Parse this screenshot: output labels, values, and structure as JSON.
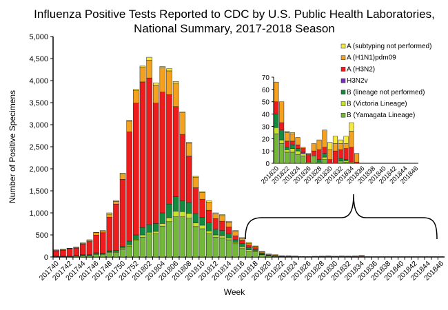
{
  "chart_data": [
    {
      "type": "bar",
      "stacked": true,
      "title": "Influenza Positive Tests Reported to CDC by U.S. Public Health Laboratories, National Summary, 2017-2018 Season",
      "title_lines": [
        "Influenza Positive Tests Reported to CDC by U.S. Public Health Laboratories,",
        "National Summary, 2017-2018 Season"
      ],
      "xlabel": "Week",
      "ylabel": "Number of Positive Specimens",
      "ylim": [
        0,
        5000
      ],
      "yticks": [
        0,
        500,
        1000,
        1500,
        2000,
        2500,
        3000,
        3500,
        4000,
        4500,
        5000
      ],
      "ytick_labels": [
        "0",
        "500",
        "1,000",
        "1,500",
        "2,000",
        "2,500",
        "3,000",
        "3,500",
        "4,000",
        "4,500",
        "5,000"
      ],
      "grid": false,
      "categories": [
        "201740",
        "201741",
        "201742",
        "201743",
        "201744",
        "201745",
        "201746",
        "201747",
        "201748",
        "201749",
        "201750",
        "201751",
        "201752",
        "201801",
        "201802",
        "201803",
        "201804",
        "201805",
        "201806",
        "201807",
        "201808",
        "201809",
        "201810",
        "201811",
        "201812",
        "201813",
        "201814",
        "201815",
        "201816",
        "201817",
        "201818",
        "201819",
        "201820",
        "201821",
        "201822",
        "201823",
        "201824",
        "201825",
        "201826",
        "201827",
        "201828",
        "201829",
        "201830",
        "201831",
        "201832",
        "201833",
        "201834",
        "201835",
        "201836",
        "201837",
        "201838",
        "201839",
        "201840",
        "201841",
        "201842",
        "201843",
        "201844",
        "201845",
        "201846"
      ],
      "series": [
        {
          "name": "B (Yamagata Lineage)",
          "color": "#74b83a",
          "values": [
            10,
            10,
            10,
            20,
            30,
            30,
            60,
            60,
            100,
            100,
            170,
            250,
            370,
            450,
            520,
            530,
            700,
            800,
            910,
            910,
            880,
            690,
            640,
            530,
            450,
            430,
            390,
            300,
            190,
            120,
            120,
            50,
            24,
            16,
            9,
            9,
            7,
            6,
            1,
            6,
            1,
            3,
            0,
            0,
            2,
            1,
            1,
            0,
            0,
            0,
            0,
            0,
            0,
            0,
            0,
            0,
            0,
            0,
            0
          ]
        },
        {
          "name": "B (Victoria Lineage)",
          "color": "#c6e22c",
          "values": [
            2,
            2,
            3,
            3,
            5,
            5,
            10,
            10,
            15,
            20,
            30,
            30,
            30,
            50,
            40,
            50,
            60,
            90,
            130,
            120,
            110,
            80,
            80,
            60,
            50,
            50,
            40,
            30,
            40,
            40,
            20,
            10,
            5,
            3,
            2,
            3,
            3,
            2,
            0,
            0,
            0,
            2,
            0,
            0,
            0,
            1,
            0,
            0,
            0,
            0,
            0,
            0,
            0,
            0,
            0,
            0,
            0,
            0,
            0
          ]
        },
        {
          "name": "B (lineage not performed)",
          "color": "#138a3e",
          "values": [
            5,
            5,
            7,
            7,
            15,
            15,
            25,
            20,
            25,
            30,
            40,
            80,
            100,
            170,
            170,
            180,
            240,
            310,
            330,
            250,
            240,
            210,
            180,
            180,
            130,
            120,
            90,
            60,
            70,
            60,
            30,
            15,
            11,
            8,
            2,
            3,
            2,
            0,
            0,
            0,
            2,
            3,
            0,
            0,
            2,
            1,
            0,
            0,
            0,
            0,
            0,
            0,
            0,
            0,
            0,
            0,
            0,
            0,
            0
          ]
        },
        {
          "name": "H3N2v",
          "color": "#7a2dc0",
          "values": [
            0,
            0,
            0,
            0,
            0,
            0,
            0,
            0,
            0,
            0,
            0,
            0,
            0,
            0,
            0,
            0,
            0,
            0,
            0,
            0,
            0,
            0,
            0,
            0,
            0,
            0,
            0,
            0,
            0,
            0,
            0,
            0,
            0,
            0,
            0,
            0,
            0,
            1,
            0,
            0,
            0,
            0,
            0,
            0,
            0,
            0,
            0,
            0,
            0,
            0,
            0,
            0,
            0,
            0,
            0,
            0,
            0,
            0,
            0
          ]
        },
        {
          "name": "A (H3N2)",
          "color": "#ee1c1c",
          "values": [
            120,
            135,
            160,
            170,
            240,
            300,
            400,
            460,
            760,
            1050,
            1520,
            2480,
            2990,
            3300,
            3330,
            2730,
            2740,
            2480,
            2040,
            1500,
            1060,
            590,
            410,
            290,
            240,
            210,
            160,
            90,
            80,
            50,
            40,
            20,
            10,
            6,
            5,
            3,
            3,
            3,
            6,
            4,
            8,
            5,
            3,
            10,
            7,
            9,
            12,
            1,
            0,
            0,
            0,
            0,
            0,
            0,
            0,
            0,
            0,
            0,
            0
          ]
        },
        {
          "name": "A (H1N1)pdm09",
          "color": "#f4a11e",
          "values": [
            15,
            15,
            12,
            15,
            20,
            30,
            55,
            40,
            70,
            60,
            120,
            240,
            280,
            330,
            400,
            400,
            550,
            540,
            530,
            490,
            290,
            240,
            150,
            180,
            110,
            130,
            110,
            100,
            40,
            40,
            30,
            20,
            16,
            17,
            7,
            6,
            6,
            1,
            1,
            6,
            8,
            14,
            8,
            6,
            5,
            4,
            13,
            7,
            0,
            0,
            0,
            0,
            0,
            0,
            0,
            0,
            0,
            0,
            0
          ]
        },
        {
          "name": "A (subtyping not performed)",
          "color": "#f7ea3e",
          "values": [
            8,
            8,
            8,
            10,
            10,
            10,
            10,
            10,
            30,
            20,
            20,
            20,
            30,
            30,
            70,
            60,
            30,
            50,
            40,
            20,
            20,
            20,
            20,
            30,
            20,
            20,
            20,
            20,
            20,
            20,
            10,
            10,
            0,
            0,
            1,
            1,
            0,
            0,
            0,
            0,
            0,
            0,
            6,
            6,
            3,
            6,
            7,
            0,
            0,
            0,
            0,
            0,
            0,
            0,
            0,
            0,
            0,
            0,
            0
          ]
        }
      ]
    },
    {
      "type": "bar",
      "stacked": true,
      "inset": true,
      "ylim": [
        0,
        70
      ],
      "yticks": [
        0,
        10,
        20,
        30,
        40,
        50,
        60,
        70
      ],
      "categories_from": "201820",
      "tick_labels": [
        "201820",
        "201822",
        "201824",
        "201826",
        "201828",
        "201830",
        "201832",
        "201834",
        "201836",
        "201838",
        "201840",
        "201842",
        "201844",
        "201846"
      ],
      "legend": {
        "placement": "top-right",
        "entries": [
          "A (subtyping not performed)",
          "A (H1N1)pdm09",
          "A (H3N2)",
          "H3N2v",
          "B (lineage not performed)",
          "B (Victoria Lineage)",
          "B (Yamagata Lineage)"
        ]
      }
    }
  ]
}
